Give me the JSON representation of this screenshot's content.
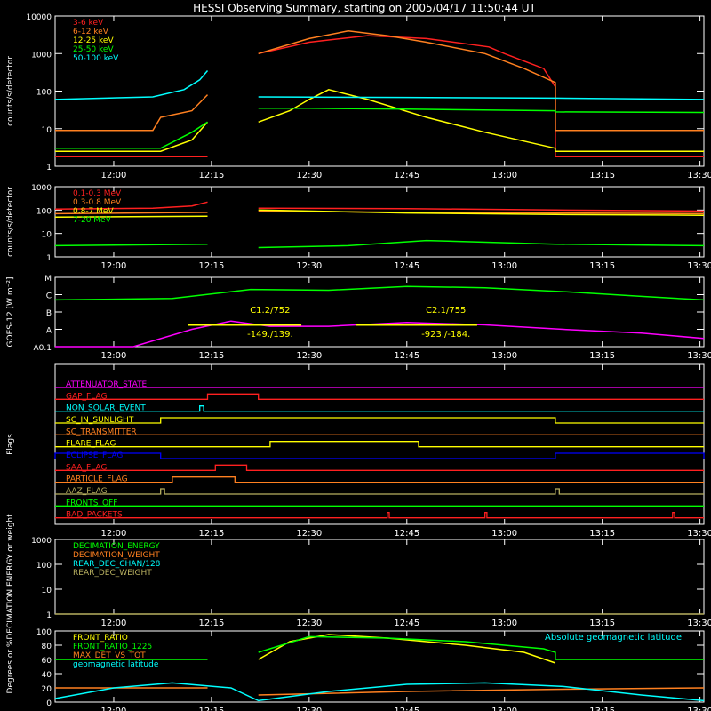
{
  "title": "HESSI Observing Summary, starting on 2005/04/17 11:50:44 UT",
  "time_ticks": [
    "12:00",
    "12:15",
    "12:30",
    "12:45",
    "13:00",
    "13:15",
    "13:30"
  ],
  "colors": {
    "red": "#ff2020",
    "orange": "#ff8020",
    "yellow": "#ffff00",
    "green": "#00ff00",
    "cyan": "#00ffff",
    "magenta": "#ff00ff",
    "blue": "#0000ff",
    "olive": "#b8b060",
    "white": "#ffffff"
  },
  "chart_data": [
    {
      "id": "lo-energy",
      "type": "line",
      "ylabel": "counts/s/detector",
      "yscale": "log",
      "ylim": [
        1,
        10000
      ],
      "ytick_labels": [
        "1",
        "10",
        "100",
        "1000",
        "10000"
      ],
      "legend_placement": "top-left",
      "series": [
        {
          "name": "3-6 keV",
          "color": "red",
          "x": [
            11.85,
            12.24,
            12.24,
            12.37,
            12.37,
            12.5,
            12.65,
            12.8,
            12.96,
            13.0,
            13.1,
            13.13,
            13.13,
            13.51
          ],
          "y": [
            1.8,
            1.8,
            null,
            null,
            1000,
            2000,
            3000,
            2500,
            1500,
            1000,
            400,
            130,
            1.8,
            1.8
          ]
        },
        {
          "name": "6-12 keV",
          "color": "orange",
          "x": [
            11.85,
            12.1,
            12.12,
            12.2,
            12.24,
            12.24,
            12.37,
            12.37,
            12.5,
            12.6,
            12.7,
            12.8,
            12.95,
            13.05,
            13.13,
            13.13,
            13.51
          ],
          "y": [
            9,
            9,
            20,
            30,
            80,
            null,
            null,
            1000,
            2500,
            4000,
            3000,
            2000,
            1000,
            400,
            170,
            9,
            9
          ]
        },
        {
          "name": "12-25 keV",
          "color": "yellow",
          "x": [
            11.85,
            12.12,
            12.2,
            12.24,
            12.24,
            12.37,
            12.37,
            12.45,
            12.5,
            12.55,
            12.65,
            12.8,
            12.95,
            13.13,
            13.13,
            13.51
          ],
          "y": [
            2.5,
            2.5,
            5,
            15,
            null,
            null,
            15,
            30,
            60,
            110,
            60,
            20,
            8,
            3,
            2.5,
            2.5
          ]
        },
        {
          "name": "25-50 keV",
          "color": "green",
          "x": [
            11.85,
            12.12,
            12.2,
            12.24,
            12.24,
            12.37,
            12.37,
            12.5,
            12.75,
            13.0,
            13.13,
            13.13,
            13.51
          ],
          "y": [
            3,
            3,
            8,
            15,
            null,
            null,
            35,
            35,
            33,
            31,
            30,
            28,
            27
          ]
        },
        {
          "name": "50-100 keV",
          "color": "cyan",
          "x": [
            11.85,
            12.1,
            12.18,
            12.22,
            12.24,
            12.24,
            12.37,
            12.37,
            12.75,
            13.13,
            13.51
          ],
          "y": [
            60,
            70,
            110,
            200,
            350,
            null,
            null,
            70,
            68,
            65,
            60
          ]
        }
      ]
    },
    {
      "id": "hi-energy",
      "type": "line",
      "ylabel": "counts/s/detector",
      "yscale": "log",
      "ylim": [
        1,
        1000
      ],
      "ytick_labels": [
        "1",
        "10",
        "100",
        "1000"
      ],
      "legend_placement": "top-left",
      "series": [
        {
          "name": "0.1-0.3 MeV",
          "color": "red",
          "x": [
            11.85,
            12.1,
            12.2,
            12.24,
            12.24,
            12.37,
            12.37,
            12.75,
            13.13,
            13.51
          ],
          "y": [
            110,
            120,
            150,
            220,
            null,
            null,
            120,
            115,
            100,
            90
          ]
        },
        {
          "name": "0.3-0.8 MeV",
          "color": "orange",
          "x": [
            11.85,
            12.24,
            12.24,
            12.37,
            12.37,
            12.75,
            13.13,
            13.51
          ],
          "y": [
            70,
            80,
            null,
            null,
            90,
            80,
            75,
            70
          ]
        },
        {
          "name": "0.8-7 MeV",
          "color": "yellow",
          "x": [
            11.85,
            12.24,
            12.24,
            12.37,
            12.37,
            12.75,
            13.13,
            13.51
          ],
          "y": [
            50,
            55,
            null,
            null,
            100,
            75,
            65,
            60
          ]
        },
        {
          "name": "7-20 MeV",
          "color": "green",
          "x": [
            11.85,
            12.24,
            12.24,
            12.37,
            12.37,
            12.6,
            12.8,
            13.13,
            13.51
          ],
          "y": [
            3,
            3.5,
            null,
            null,
            2.5,
            3,
            5,
            3.5,
            3
          ]
        }
      ]
    },
    {
      "id": "goes",
      "type": "line",
      "ylabel": "GOES-12 [W m⁻²]",
      "yscale": "log",
      "ylim": [
        1e-08,
        0.0001
      ],
      "ytick_labels": [
        "A0.1",
        "A",
        "B",
        "C",
        "M"
      ],
      "series": [
        {
          "color": "green",
          "x": [
            11.85,
            12.15,
            12.35,
            12.55,
            12.75,
            12.95,
            13.15,
            13.35,
            13.51
          ],
          "y": [
            5e-06,
            6e-06,
            2e-05,
            1.8e-05,
            3e-05,
            2.5e-05,
            1.5e-05,
            8e-06,
            5e-06
          ]
        },
        {
          "color": "magenta",
          "x": [
            11.85,
            12.05,
            12.2,
            12.3,
            12.4,
            12.55,
            12.75,
            12.95,
            13.15,
            13.35,
            13.51
          ],
          "y": [
            8e-09,
            8e-09,
            1e-07,
            3e-07,
            1.5e-07,
            1.5e-07,
            2.5e-07,
            1.8e-07,
            1e-07,
            6e-08,
            3e-08
          ]
        }
      ],
      "annotations": [
        {
          "text": "C1.2/752",
          "x": 12.4,
          "y": 1.4e-06
        },
        {
          "text": "-149./139.",
          "x": 12.4,
          "y": 6e-08
        },
        {
          "text": "C2.1/755",
          "x": 12.85,
          "y": 1.4e-06
        },
        {
          "text": "-923./-184.",
          "x": 12.85,
          "y": 6e-08
        }
      ],
      "bars": [
        {
          "x0": 12.19,
          "x1": 12.48,
          "y": 1.8e-07
        },
        {
          "x0": 12.62,
          "x1": 12.93,
          "y": 1.8e-07
        }
      ]
    },
    {
      "id": "flags",
      "type": "line",
      "ylabel": "Flags",
      "flags": [
        {
          "name": "ATTENUATOR_STATE",
          "color": "magenta",
          "segments": []
        },
        {
          "name": "GAP_FLAG",
          "color": "red",
          "segments": [
            [
              12.24,
              12.37
            ]
          ]
        },
        {
          "name": "NON_SOLAR_EVENT",
          "color": "cyan",
          "segments": [
            [
              12.22,
              12.23
            ]
          ]
        },
        {
          "name": "SC_IN_SUNLIGHT",
          "color": "yellow",
          "segments": [
            [
              12.12,
              13.13
            ]
          ]
        },
        {
          "name": "SC_TRANSMITTER",
          "color": "orange",
          "segments": []
        },
        {
          "name": "FLARE_FLAG",
          "color": "yellow",
          "segments": [
            [
              12.4,
              12.78
            ]
          ]
        },
        {
          "name": "ECLIPSE_FLAG",
          "color": "blue",
          "segments": [
            [
              11.85,
              12.12
            ],
            [
              13.13,
              13.51
            ]
          ]
        },
        {
          "name": "SAA_FLAG",
          "color": "red",
          "segments": [
            [
              12.26,
              12.34
            ]
          ]
        },
        {
          "name": "PARTICLE_FLAG",
          "color": "orange",
          "segments": [
            [
              12.15,
              12.31
            ]
          ]
        },
        {
          "name": "AAZ_FLAG",
          "color": "olive",
          "segments": [
            [
              12.12,
              12.13
            ],
            [
              13.13,
              13.14
            ]
          ]
        },
        {
          "name": "FRONTS_OFF",
          "color": "green",
          "segments": []
        },
        {
          "name": "BAD_PACKETS",
          "color": "red",
          "segments": [
            [
              12.7,
              12.705
            ],
            [
              12.95,
              12.955
            ],
            [
              13.43,
              13.435
            ]
          ]
        }
      ]
    },
    {
      "id": "decimation",
      "type": "line",
      "ylabel": "DECIMATION ENERGY or weight",
      "yscale": "log",
      "ylim": [
        1,
        1000
      ],
      "ytick_labels": [
        "1",
        "10",
        "100",
        "1000"
      ],
      "legend_placement": "top-left",
      "series": [
        {
          "name": "DECIMATION_ENERGY",
          "color": "green",
          "x": [],
          "y": []
        },
        {
          "name": "DECIMATION_WEIGHT",
          "color": "orange",
          "x": [],
          "y": []
        },
        {
          "name": "REAR_DEC_CHAN/128",
          "color": "cyan",
          "x": [],
          "y": []
        },
        {
          "name": "REAR_DEC_WEIGHT",
          "color": "olive",
          "x": [
            11.85,
            13.51
          ],
          "y": [
            1,
            1
          ]
        }
      ]
    },
    {
      "id": "ratios",
      "type": "line",
      "ylabel": "Degrees or %",
      "ylim": [
        0,
        100
      ],
      "ytick_labels": [
        "0",
        "20",
        "40",
        "60",
        "80",
        "100"
      ],
      "legend_placement": "top-left",
      "annotations": [
        {
          "text": "Absolute geomagnetic latitude",
          "color": "cyan",
          "placement": "top-right"
        }
      ],
      "series": [
        {
          "name": "FRONT_RATIO",
          "color": "yellow",
          "x": [
            12.37,
            12.45,
            12.55,
            12.7,
            12.9,
            13.05,
            13.13
          ],
          "y": [
            60,
            85,
            95,
            90,
            80,
            70,
            55
          ]
        },
        {
          "name": "FRONT_RATIO_1225",
          "color": "green",
          "x": [
            11.85,
            12.24,
            12.24,
            12.37,
            12.37,
            12.5,
            12.7,
            12.9,
            13.1,
            13.13,
            13.13,
            13.51
          ],
          "y": [
            60,
            60,
            null,
            null,
            70,
            92,
            90,
            85,
            75,
            70,
            60,
            60
          ]
        },
        {
          "name": "MAX_DET_VS_TOT",
          "color": "orange",
          "x": [
            11.85,
            12.24,
            12.24,
            12.37,
            12.37,
            12.75,
            13.13,
            13.51
          ],
          "y": [
            20,
            20,
            null,
            null,
            10,
            15,
            18,
            20
          ]
        },
        {
          "name": "geomagnetic latitude",
          "color": "cyan",
          "x": [
            11.85,
            12.0,
            12.15,
            12.3,
            12.37,
            12.55,
            12.75,
            12.95,
            13.15,
            13.35,
            13.51
          ],
          "y": [
            5,
            20,
            27,
            20,
            2,
            15,
            25,
            27,
            22,
            10,
            2
          ]
        }
      ]
    }
  ]
}
